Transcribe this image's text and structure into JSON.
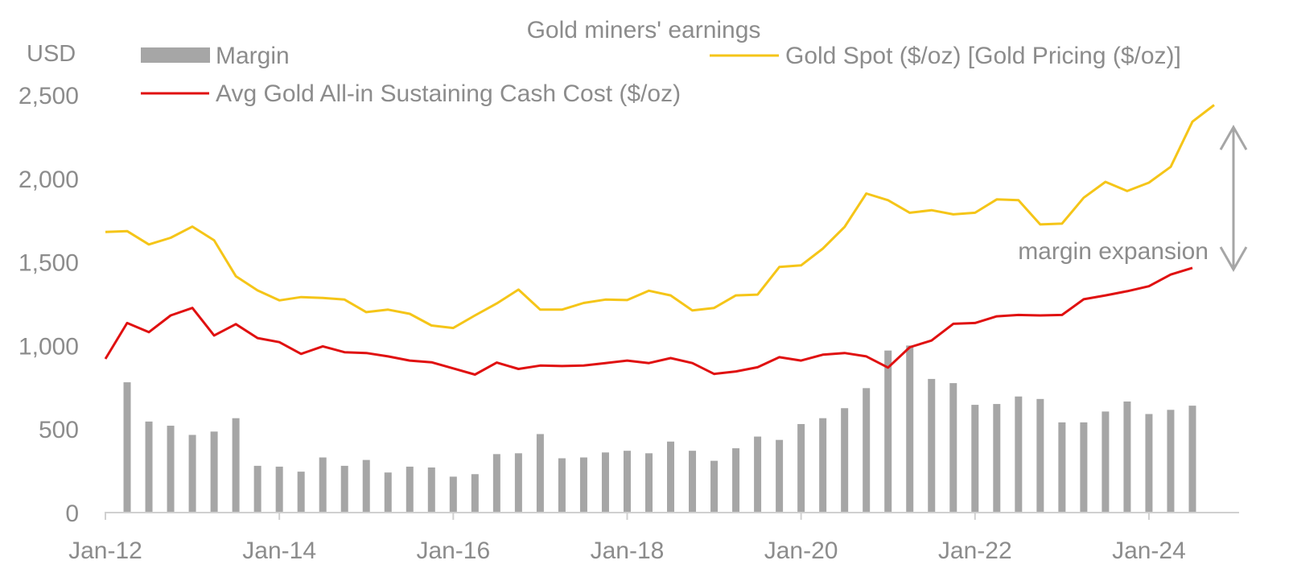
{
  "chart_data": {
    "type": "bar+line",
    "title": "Gold miners' earnings",
    "yunit": "USD",
    "ylim": [
      0,
      2500
    ],
    "yticks": [
      0,
      500,
      1000,
      1500,
      2000,
      2500
    ],
    "ytick_labels": [
      "0",
      "500",
      "1,000",
      "1,500",
      "2,000",
      "2,500"
    ],
    "xticks": [
      "Jan-12",
      "Jan-14",
      "Jan-16",
      "Jan-18",
      "Jan-20",
      "Jan-22",
      "Jan-24"
    ],
    "legend": {
      "margin": "Margin",
      "spot": "Gold Spot ($/oz) [Gold Pricing ($/oz)]",
      "cost": "Avg Gold All-in Sustaining Cash Cost ($/oz)"
    },
    "annotation": "margin expansion",
    "colors": {
      "margin": "#a6a6a6",
      "spot": "#f5c518",
      "cost": "#e01010",
      "axis": "#d0d0d0",
      "text": "#8c8c8c"
    },
    "series": [
      {
        "name": "Gold Spot ($/oz) [Gold Pricing ($/oz)]",
        "kind": "line",
        "values": [
          1680,
          1685,
          1605,
          1645,
          1712,
          1630,
          1415,
          1330,
          1270,
          1290,
          1285,
          1275,
          1200,
          1215,
          1190,
          1120,
          1105,
          1180,
          1252,
          1335,
          1215,
          1215,
          1255,
          1275,
          1272,
          1328,
          1300,
          1210,
          1225,
          1300,
          1305,
          1470,
          1480,
          1580,
          1710,
          1910,
          1870,
          1795,
          1810,
          1785,
          1795,
          1875,
          1870,
          1725,
          1730,
          1885,
          1980,
          1925,
          1975,
          2070,
          2340,
          2440
        ]
      },
      {
        "name": "Avg Gold All-in Sustaining Cash Cost ($/oz)",
        "kind": "line",
        "values": [
          920,
          1135,
          1080,
          1180,
          1225,
          1060,
          1128,
          1045,
          1020,
          950,
          995,
          960,
          955,
          935,
          910,
          900,
          863,
          826,
          898,
          860,
          880,
          877,
          880,
          895,
          910,
          895,
          925,
          895,
          830,
          845,
          870,
          930,
          910,
          945,
          955,
          935,
          868,
          990,
          1030,
          1130,
          1135,
          1175,
          1183,
          1180,
          1183,
          1277,
          1300,
          1325,
          1355,
          1425,
          1465
        ]
      },
      {
        "name": "Margin",
        "kind": "bar",
        "values": [
          780,
          545,
          520,
          465,
          485,
          565,
          280,
          275,
          245,
          330,
          280,
          315,
          240,
          275,
          270,
          215,
          230,
          350,
          355,
          470,
          325,
          330,
          360,
          370,
          355,
          425,
          370,
          310,
          385,
          455,
          435,
          530,
          565,
          625,
          745,
          970,
          1000,
          800,
          775,
          645,
          650,
          695,
          680,
          540,
          540,
          605,
          665,
          590,
          615,
          640
        ]
      }
    ]
  }
}
